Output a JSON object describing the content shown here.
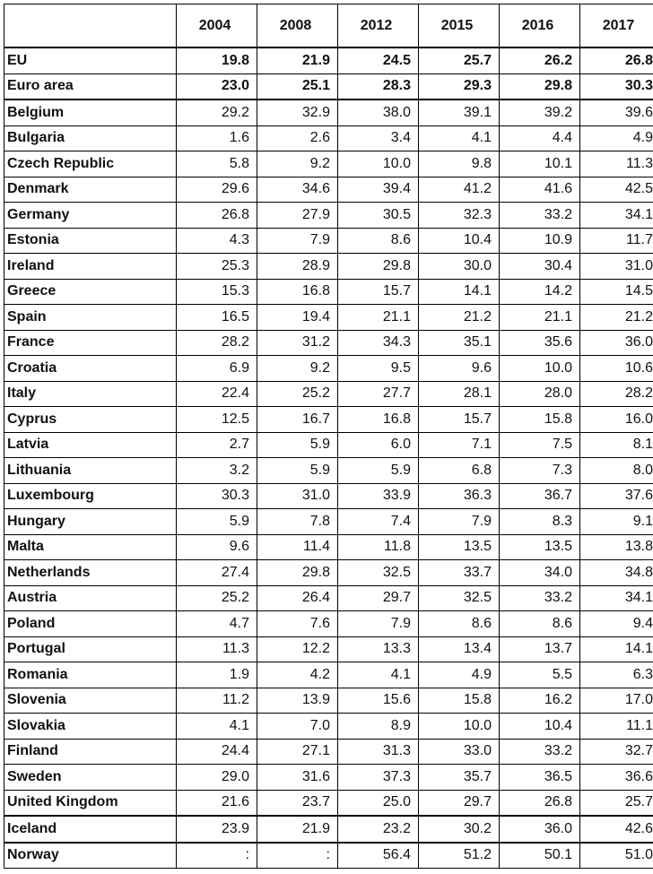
{
  "table": {
    "corner": "",
    "columns": [
      "2004",
      "2008",
      "2012",
      "2015",
      "2016",
      "2017"
    ],
    "rows": [
      {
        "name": "EU",
        "values": [
          "19.8",
          "21.9",
          "24.5",
          "25.7",
          "26.2",
          "26.8"
        ],
        "bold": true
      },
      {
        "name": "Euro area",
        "values": [
          "23.0",
          "25.1",
          "28.3",
          "29.3",
          "29.8",
          "30.3"
        ],
        "bold": true
      },
      {
        "name": "Belgium",
        "values": [
          "29.2",
          "32.9",
          "38.0",
          "39.1",
          "39.2",
          "39.6"
        ]
      },
      {
        "name": "Bulgaria",
        "values": [
          "1.6",
          "2.6",
          "3.4",
          "4.1",
          "4.4",
          "4.9"
        ]
      },
      {
        "name": "Czech Republic",
        "values": [
          "5.8",
          "9.2",
          "10.0",
          "9.8",
          "10.1",
          "11.3"
        ]
      },
      {
        "name": "Denmark",
        "values": [
          "29.6",
          "34.6",
          "39.4",
          "41.2",
          "41.6",
          "42.5"
        ]
      },
      {
        "name": "Germany",
        "values": [
          "26.8",
          "27.9",
          "30.5",
          "32.3",
          "33.2",
          "34.1"
        ]
      },
      {
        "name": "Estonia",
        "values": [
          "4.3",
          "7.9",
          "8.6",
          "10.4",
          "10.9",
          "11.7"
        ]
      },
      {
        "name": "Ireland",
        "values": [
          "25.3",
          "28.9",
          "29.8",
          "30.0",
          "30.4",
          "31.0"
        ]
      },
      {
        "name": "Greece",
        "values": [
          "15.3",
          "16.8",
          "15.7",
          "14.1",
          "14.2",
          "14.5"
        ]
      },
      {
        "name": "Spain",
        "values": [
          "16.5",
          "19.4",
          "21.1",
          "21.2",
          "21.1",
          "21.2"
        ]
      },
      {
        "name": "France",
        "values": [
          "28.2",
          "31.2",
          "34.3",
          "35.1",
          "35.6",
          "36.0"
        ]
      },
      {
        "name": "Croatia",
        "values": [
          "6.9",
          "9.2",
          "9.5",
          "9.6",
          "10.0",
          "10.6"
        ]
      },
      {
        "name": "Italy",
        "values": [
          "22.4",
          "25.2",
          "27.7",
          "28.1",
          "28.0",
          "28.2"
        ]
      },
      {
        "name": "Cyprus",
        "values": [
          "12.5",
          "16.7",
          "16.8",
          "15.7",
          "15.8",
          "16.0"
        ]
      },
      {
        "name": "Latvia",
        "values": [
          "2.7",
          "5.9",
          "6.0",
          "7.1",
          "7.5",
          "8.1"
        ]
      },
      {
        "name": "Lithuania",
        "values": [
          "3.2",
          "5.9",
          "5.9",
          "6.8",
          "7.3",
          "8.0"
        ]
      },
      {
        "name": "Luxembourg",
        "values": [
          "30.3",
          "31.0",
          "33.9",
          "36.3",
          "36.7",
          "37.6"
        ]
      },
      {
        "name": "Hungary",
        "values": [
          "5.9",
          "7.8",
          "7.4",
          "7.9",
          "8.3",
          "9.1"
        ]
      },
      {
        "name": "Malta",
        "values": [
          "9.6",
          "11.4",
          "11.8",
          "13.5",
          "13.5",
          "13.8"
        ]
      },
      {
        "name": "Netherlands",
        "values": [
          "27.4",
          "29.8",
          "32.5",
          "33.7",
          "34.0",
          "34.8"
        ]
      },
      {
        "name": "Austria",
        "values": [
          "25.2",
          "26.4",
          "29.7",
          "32.5",
          "33.2",
          "34.1"
        ]
      },
      {
        "name": "Poland",
        "values": [
          "4.7",
          "7.6",
          "7.9",
          "8.6",
          "8.6",
          "9.4"
        ]
      },
      {
        "name": "Portugal",
        "values": [
          "11.3",
          "12.2",
          "13.3",
          "13.4",
          "13.7",
          "14.1"
        ]
      },
      {
        "name": "Romania",
        "values": [
          "1.9",
          "4.2",
          "4.1",
          "4.9",
          "5.5",
          "6.3"
        ]
      },
      {
        "name": "Slovenia",
        "values": [
          "11.2",
          "13.9",
          "15.6",
          "15.8",
          "16.2",
          "17.0"
        ]
      },
      {
        "name": "Slovakia",
        "values": [
          "4.1",
          "7.0",
          "8.9",
          "10.0",
          "10.4",
          "11.1"
        ]
      },
      {
        "name": "Finland",
        "values": [
          "24.4",
          "27.1",
          "31.3",
          "33.0",
          "33.2",
          "32.7"
        ]
      },
      {
        "name": "Sweden",
        "values": [
          "29.0",
          "31.6",
          "37.3",
          "35.7",
          "36.5",
          "36.6"
        ]
      },
      {
        "name": "United Kingdom",
        "values": [
          "21.6",
          "23.7",
          "25.0",
          "29.7",
          "26.8",
          "25.7"
        ]
      },
      {
        "name": "Iceland",
        "values": [
          "23.9",
          "21.9",
          "23.2",
          "30.2",
          "36.0",
          "42.6"
        ]
      },
      {
        "name": "Norway",
        "values": [
          ":",
          ":",
          "56.4",
          "51.2",
          "50.1",
          "51.0"
        ]
      }
    ]
  }
}
